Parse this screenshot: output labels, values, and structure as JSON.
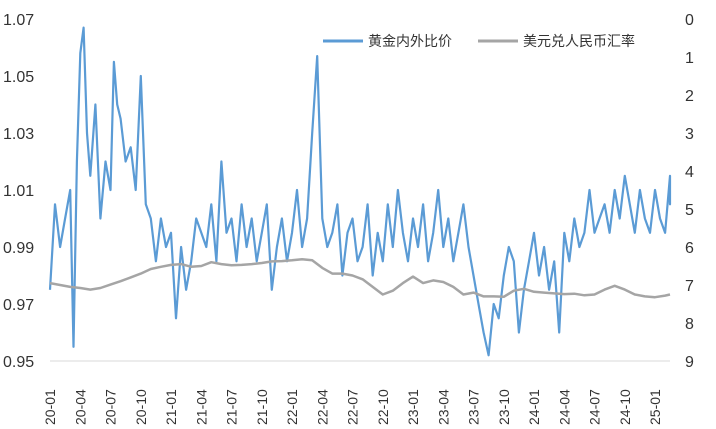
{
  "chart_data": {
    "type": "line",
    "title": "",
    "xlabel": "",
    "ylabel_left": "",
    "ylabel_right": "",
    "x_ticks": [
      "20-01",
      "20-04",
      "20-07",
      "20-10",
      "21-01",
      "21-04",
      "21-07",
      "21-10",
      "22-01",
      "22-04",
      "22-07",
      "22-10",
      "23-01",
      "23-04",
      "23-07",
      "23-10",
      "24-01",
      "24-04",
      "24-07",
      "24-10",
      "25-01"
    ],
    "y_left": {
      "min": 0.95,
      "max": 1.07,
      "ticks": [
        "0.95",
        "0.97",
        "0.99",
        "1.01",
        "1.03",
        "1.05",
        "1.07"
      ]
    },
    "y_right": {
      "min": 0,
      "max": 9,
      "inverted": true,
      "ticks": [
        "0",
        "1",
        "2",
        "3",
        "4",
        "5",
        "6",
        "7",
        "8",
        "9"
      ]
    },
    "legend_position": "top-right",
    "grid": false,
    "series": [
      {
        "name": "黄金内外比价",
        "axis": "left",
        "color": "#5B9BD5",
        "points": [
          [
            "20-01",
            0.975
          ],
          [
            "20-01",
            1.005
          ],
          [
            "20-02",
            0.99
          ],
          [
            "20-02",
            1.0
          ],
          [
            "20-03",
            1.01
          ],
          [
            "20-03",
            0.955
          ],
          [
            "20-03",
            1.02
          ],
          [
            "20-04",
            1.058
          ],
          [
            "20-04",
            1.067
          ],
          [
            "20-04",
            1.03
          ],
          [
            "20-05",
            1.015
          ],
          [
            "20-05",
            1.04
          ],
          [
            "20-06",
            1.0
          ],
          [
            "20-06",
            1.02
          ],
          [
            "20-07",
            1.01
          ],
          [
            "20-07",
            1.055
          ],
          [
            "20-07",
            1.04
          ],
          [
            "20-08",
            1.035
          ],
          [
            "20-08",
            1.02
          ],
          [
            "20-09",
            1.025
          ],
          [
            "20-09",
            1.01
          ],
          [
            "20-10",
            1.05
          ],
          [
            "20-10",
            1.005
          ],
          [
            "20-11",
            1.0
          ],
          [
            "20-11",
            0.985
          ],
          [
            "20-12",
            1.0
          ],
          [
            "20-12",
            0.99
          ],
          [
            "21-01",
            0.995
          ],
          [
            "21-01",
            0.965
          ],
          [
            "21-02",
            0.99
          ],
          [
            "21-02",
            0.975
          ],
          [
            "21-03",
            0.985
          ],
          [
            "21-03",
            1.0
          ],
          [
            "21-04",
            0.995
          ],
          [
            "21-04",
            0.99
          ],
          [
            "21-05",
            1.005
          ],
          [
            "21-05",
            0.985
          ],
          [
            "21-06",
            1.02
          ],
          [
            "21-06",
            0.995
          ],
          [
            "21-07",
            1.0
          ],
          [
            "21-07",
            0.985
          ],
          [
            "21-08",
            1.005
          ],
          [
            "21-08",
            0.99
          ],
          [
            "21-09",
            1.0
          ],
          [
            "21-09",
            0.985
          ],
          [
            "21-10",
            0.995
          ],
          [
            "21-10",
            1.005
          ],
          [
            "21-11",
            0.975
          ],
          [
            "21-11",
            0.99
          ],
          [
            "21-12",
            1.0
          ],
          [
            "21-12",
            0.985
          ],
          [
            "22-01",
            0.995
          ],
          [
            "22-01",
            1.01
          ],
          [
            "22-02",
            0.99
          ],
          [
            "22-02",
            1.0
          ],
          [
            "22-03",
            1.03
          ],
          [
            "22-03",
            1.057
          ],
          [
            "22-04",
            1.0
          ],
          [
            "22-04",
            0.99
          ],
          [
            "22-05",
            0.995
          ],
          [
            "22-05",
            1.005
          ],
          [
            "22-06",
            0.98
          ],
          [
            "22-06",
            0.995
          ],
          [
            "22-07",
            1.0
          ],
          [
            "22-07",
            0.985
          ],
          [
            "22-08",
            0.99
          ],
          [
            "22-08",
            1.005
          ],
          [
            "22-09",
            0.98
          ],
          [
            "22-09",
            0.995
          ],
          [
            "22-10",
            0.985
          ],
          [
            "22-10",
            1.005
          ],
          [
            "22-11",
            0.99
          ],
          [
            "22-11",
            1.01
          ],
          [
            "22-12",
            0.995
          ],
          [
            "22-12",
            0.985
          ],
          [
            "23-01",
            1.0
          ],
          [
            "23-01",
            0.99
          ],
          [
            "23-02",
            1.005
          ],
          [
            "23-02",
            0.985
          ],
          [
            "23-03",
            0.995
          ],
          [
            "23-03",
            1.01
          ],
          [
            "23-04",
            0.99
          ],
          [
            "23-04",
            1.0
          ],
          [
            "23-05",
            0.985
          ],
          [
            "23-05",
            0.995
          ],
          [
            "23-06",
            1.005
          ],
          [
            "23-06",
            0.99
          ],
          [
            "23-07",
            0.98
          ],
          [
            "23-07",
            0.97
          ],
          [
            "23-08",
            0.96
          ],
          [
            "23-08",
            0.952
          ],
          [
            "23-09",
            0.97
          ],
          [
            "23-09",
            0.965
          ],
          [
            "23-10",
            0.98
          ],
          [
            "23-10",
            0.99
          ],
          [
            "23-11",
            0.985
          ],
          [
            "23-11",
            0.96
          ],
          [
            "23-12",
            0.975
          ],
          [
            "23-12",
            0.985
          ],
          [
            "24-01",
            0.995
          ],
          [
            "24-01",
            0.98
          ],
          [
            "24-02",
            0.99
          ],
          [
            "24-02",
            0.975
          ],
          [
            "24-03",
            0.985
          ],
          [
            "24-03",
            0.96
          ],
          [
            "24-04",
            0.995
          ],
          [
            "24-04",
            0.985
          ],
          [
            "24-05",
            1.0
          ],
          [
            "24-05",
            0.99
          ],
          [
            "24-06",
            0.995
          ],
          [
            "24-06",
            1.01
          ],
          [
            "24-07",
            0.995
          ],
          [
            "24-07",
            1.0
          ],
          [
            "24-08",
            1.005
          ],
          [
            "24-08",
            0.995
          ],
          [
            "24-09",
            1.01
          ],
          [
            "24-09",
            1.0
          ],
          [
            "24-10",
            1.015
          ],
          [
            "24-10",
            1.005
          ],
          [
            "24-11",
            0.995
          ],
          [
            "24-11",
            1.01
          ],
          [
            "24-12",
            1.0
          ],
          [
            "24-12",
            0.995
          ],
          [
            "25-01",
            1.01
          ],
          [
            "25-01",
            1.0
          ],
          [
            "25-02",
            0.995
          ],
          [
            "25-02",
            1.015
          ],
          [
            "25-03",
            1.005
          ],
          [
            "25-03",
            1.01
          ]
        ]
      },
      {
        "name": "美元兑人民币汇率",
        "axis": "right",
        "color": "#A5A5A5",
        "points": [
          [
            "20-01",
            6.95
          ],
          [
            "20-02",
            7.0
          ],
          [
            "20-03",
            7.05
          ],
          [
            "20-04",
            7.08
          ],
          [
            "20-05",
            7.12
          ],
          [
            "20-06",
            7.08
          ],
          [
            "20-07",
            6.99
          ],
          [
            "20-08",
            6.9
          ],
          [
            "20-09",
            6.8
          ],
          [
            "20-10",
            6.7
          ],
          [
            "20-11",
            6.58
          ],
          [
            "20-12",
            6.52
          ],
          [
            "21-01",
            6.47
          ],
          [
            "21-02",
            6.45
          ],
          [
            "21-03",
            6.52
          ],
          [
            "21-04",
            6.5
          ],
          [
            "21-05",
            6.4
          ],
          [
            "21-06",
            6.45
          ],
          [
            "21-07",
            6.48
          ],
          [
            "21-08",
            6.47
          ],
          [
            "21-09",
            6.45
          ],
          [
            "21-10",
            6.42
          ],
          [
            "21-11",
            6.38
          ],
          [
            "21-12",
            6.37
          ],
          [
            "22-01",
            6.35
          ],
          [
            "22-02",
            6.32
          ],
          [
            "22-03",
            6.35
          ],
          [
            "22-04",
            6.55
          ],
          [
            "22-05",
            6.7
          ],
          [
            "22-06",
            6.7
          ],
          [
            "22-07",
            6.75
          ],
          [
            "22-08",
            6.85
          ],
          [
            "22-09",
            7.05
          ],
          [
            "22-10",
            7.25
          ],
          [
            "22-11",
            7.15
          ],
          [
            "22-12",
            6.95
          ],
          [
            "23-01",
            6.78
          ],
          [
            "23-02",
            6.95
          ],
          [
            "23-03",
            6.88
          ],
          [
            "23-04",
            6.92
          ],
          [
            "23-05",
            7.05
          ],
          [
            "23-06",
            7.25
          ],
          [
            "23-07",
            7.2
          ],
          [
            "23-08",
            7.3
          ],
          [
            "23-09",
            7.3
          ],
          [
            "23-10",
            7.31
          ],
          [
            "23-11",
            7.15
          ],
          [
            "23-12",
            7.1
          ],
          [
            "24-01",
            7.18
          ],
          [
            "24-02",
            7.2
          ],
          [
            "24-03",
            7.22
          ],
          [
            "24-04",
            7.24
          ],
          [
            "24-05",
            7.23
          ],
          [
            "24-06",
            7.27
          ],
          [
            "24-07",
            7.25
          ],
          [
            "24-08",
            7.12
          ],
          [
            "24-09",
            7.02
          ],
          [
            "24-10",
            7.12
          ],
          [
            "24-11",
            7.25
          ],
          [
            "24-12",
            7.3
          ],
          [
            "25-01",
            7.32
          ],
          [
            "25-02",
            7.28
          ],
          [
            "25-03",
            7.25
          ]
        ]
      }
    ]
  }
}
